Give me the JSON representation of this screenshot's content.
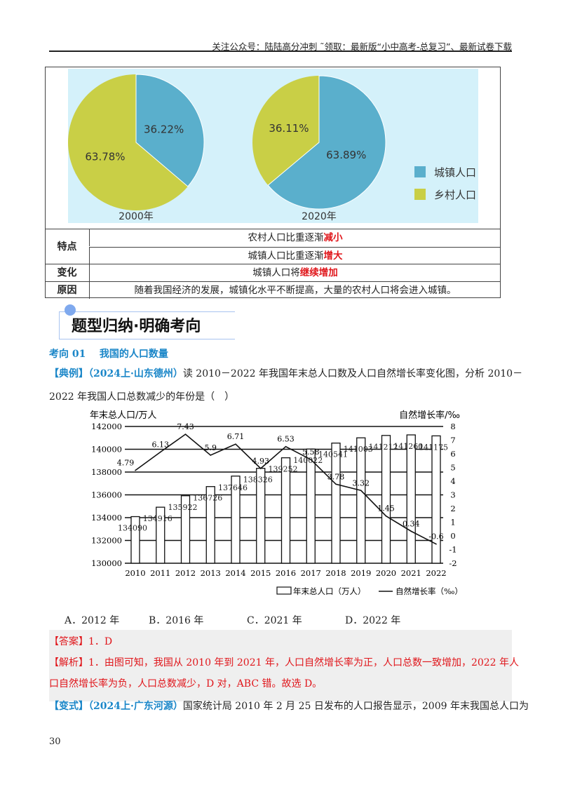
{
  "header": {
    "text": "关注公众号：陆陆高分冲刺  ˜领取：最新版“小中高考-总复习”、最新试卷下载"
  },
  "pie_charts": {
    "colors": {
      "urban": "#5aafcc",
      "rural": "#c9cf46",
      "background": "#d4f1fa"
    },
    "charts": [
      {
        "year_label": "2000年",
        "urban": 36.22,
        "rural": 63.78,
        "urban_label": "36.22%",
        "rural_label": "63.78%"
      },
      {
        "year_label": "2020年",
        "urban": 63.89,
        "rural": 36.11,
        "urban_label": "63.89%",
        "rural_label": "36.11%"
      }
    ],
    "legend": [
      {
        "label": "城镇人口",
        "color": "#5aafcc"
      },
      {
        "label": "乡村人口",
        "color": "#c9cf46"
      }
    ]
  },
  "table": {
    "rows": [
      {
        "head": "特点",
        "lines": [
          {
            "text": "农村人口比重逐渐",
            "em": "减小"
          },
          {
            "text": "城镇人口比重逐渐",
            "em": "增大"
          }
        ]
      },
      {
        "head": "变化",
        "lines": [
          {
            "text": "城镇人口将",
            "em": "继续增加"
          }
        ]
      },
      {
        "head": "原因",
        "lines": [
          {
            "text": "随着我国经济的发展，城镇化水平不断提高，大量的农村人口将会进入城镇。",
            "em": ""
          }
        ]
      }
    ]
  },
  "banner": {
    "title": "题型归纳·明确考向"
  },
  "section": {
    "label": "考向 01",
    "title": "我国的人口数量"
  },
  "example": {
    "tag": "【典例】",
    "source": "（2024上·山东德州）",
    "line1": "读 2010－2022 年我国年末总人口数及人口自然增长率变化图，分析 2010－",
    "line2": "2022 年我国人口总数减少的年份是（　）"
  },
  "chart_data": {
    "type": "bar+line",
    "ylabel_left": "年末总人口/万人",
    "ylabel_right": "自然增长率/‰",
    "ylim_left": [
      130000,
      142000
    ],
    "yticks_left": [
      "142000",
      "140000",
      "138000",
      "136000",
      "134000",
      "132000",
      "130000"
    ],
    "ylim_right": [
      -2,
      8
    ],
    "yticks_right": [
      "8",
      "7",
      "6",
      "5",
      "4",
      "3",
      "2",
      "1",
      "0",
      "-1",
      "-2"
    ],
    "categories": [
      "2010",
      "2011",
      "2012",
      "2013",
      "2014",
      "2015",
      "2016",
      "2017",
      "2018",
      "2019",
      "2020",
      "2021",
      "2022"
    ],
    "series": [
      {
        "name": "年末总人口（万人）",
        "type": "bar",
        "values": [
          134090,
          134916,
          135922,
          136726,
          137646,
          138326,
          139252,
          140022,
          140541,
          141003,
          141212,
          141260,
          141175
        ]
      },
      {
        "name": "自然增长率（‰）",
        "type": "line",
        "values": [
          4.79,
          6.13,
          7.43,
          5.9,
          6.71,
          4.93,
          6.53,
          5.58,
          3.78,
          3.32,
          1.45,
          0.34,
          -0.6
        ]
      }
    ],
    "grid": true,
    "legend_placement": "bottom-right"
  },
  "options": [
    "A．2012 年",
    "B．2016 年",
    "C．2021 年",
    "D．2022 年"
  ],
  "answer": {
    "line": "【答案】1．D"
  },
  "analysis": {
    "line1": "【解析】1．由图可知，我国从 2010 年到 2021 年，人口自然增长率为正，人口总数一致增加，2022 年人",
    "line2": "口自然增长率为负，人口总数减少，D 对，ABC 错。故选 D。"
  },
  "variant": {
    "tag": "【变式】",
    "source": "（2024上·广东河源）",
    "text": "国家统计局 2010 年 2 月 25 日发布的人口报告显示，2009 年末我国总人口为"
  },
  "page_number": "30"
}
